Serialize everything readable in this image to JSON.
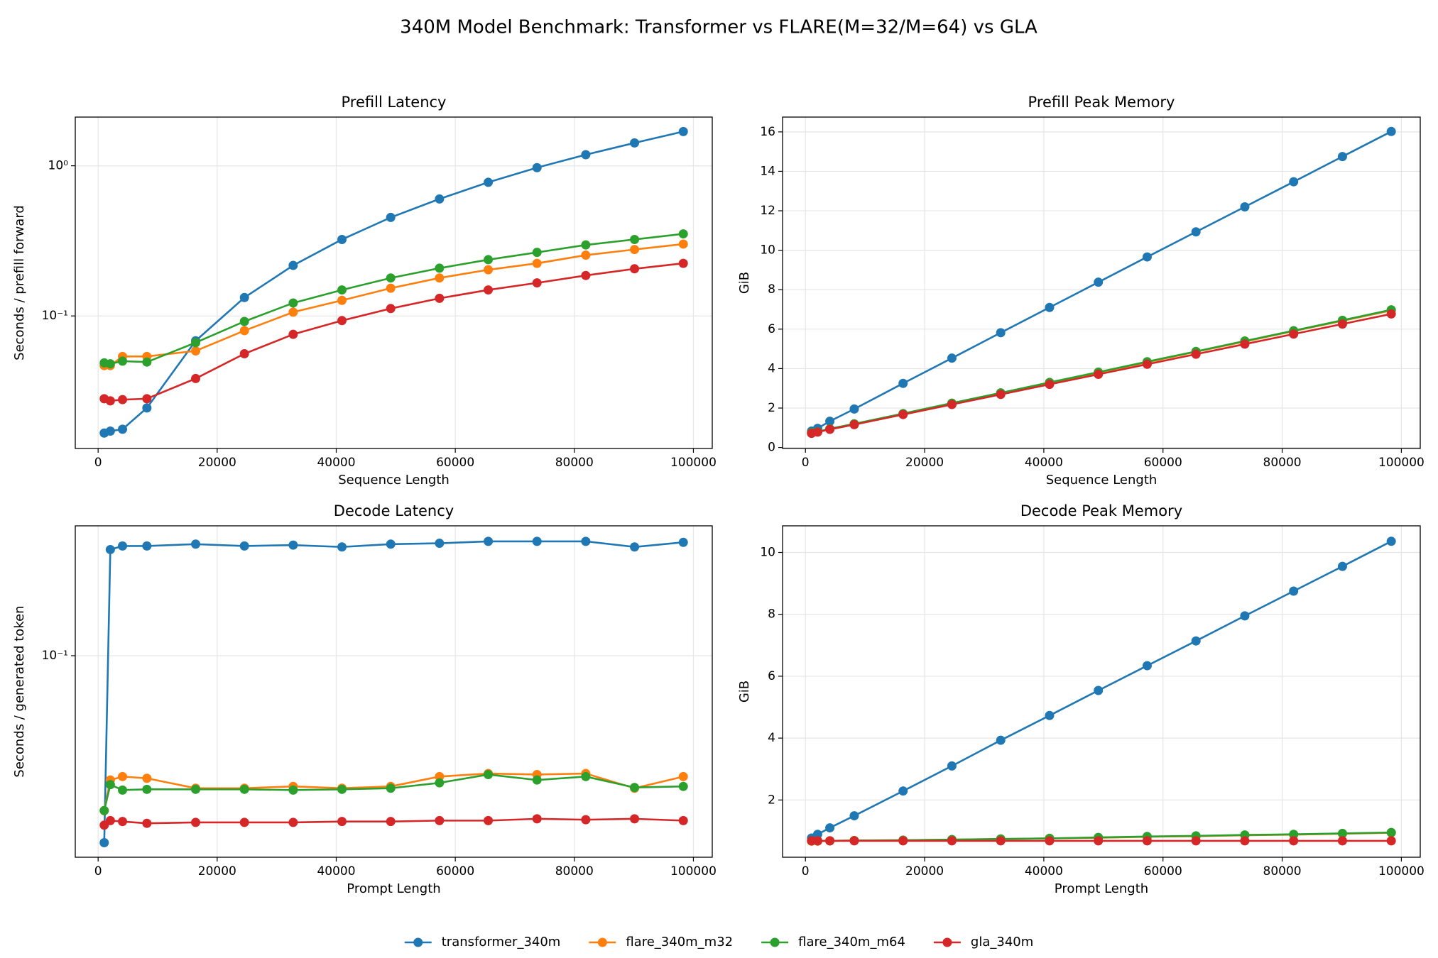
{
  "title": "340M Model Benchmark: Transformer vs FLARE(M=32/M=64) vs GLA",
  "legend": "lower center",
  "chart_data": [
    {
      "type": "line",
      "title": "Prefill Latency",
      "xlabel": "Sequence Length",
      "ylabel": "Seconds / prefill forward",
      "yscale": "log",
      "grid": true,
      "x": [
        1024,
        2048,
        4096,
        8192,
        16384,
        24576,
        32768,
        40960,
        49152,
        57344,
        65536,
        73728,
        81920,
        90112,
        98304
      ],
      "xlim": [
        -3840,
        103168
      ],
      "xticks": [
        0,
        20000,
        40000,
        60000,
        80000,
        100000
      ],
      "ylim": [
        0.0131,
        2.11
      ],
      "yticks": [
        {
          "value": 0.1,
          "label": "10⁻¹"
        },
        {
          "value": 1,
          "label": "10⁰"
        }
      ],
      "series": [
        {
          "name": "transformer_340m",
          "color": "#1f77b4",
          "values": [
            0.0166,
            0.0171,
            0.0176,
            0.0244,
            0.0683,
            0.1326,
            0.217,
            0.323,
            0.453,
            0.601,
            0.776,
            0.972,
            1.185,
            1.42,
            1.69
          ]
        },
        {
          "name": "flare_340m_m32",
          "color": "#ff7f0e",
          "values": [
            0.0467,
            0.0467,
            0.0537,
            0.0537,
            0.0585,
            0.0798,
            0.106,
            0.127,
            0.153,
            0.179,
            0.203,
            0.224,
            0.254,
            0.277,
            0.301
          ]
        },
        {
          "name": "flare_340m_m64",
          "color": "#2ca02c",
          "values": [
            0.0487,
            0.048,
            0.05,
            0.0493,
            0.0664,
            0.0919,
            0.122,
            0.149,
            0.179,
            0.208,
            0.237,
            0.265,
            0.297,
            0.323,
            0.352
          ]
        },
        {
          "name": "gla_340m",
          "color": "#d62728",
          "values": [
            0.0281,
            0.0272,
            0.0277,
            0.0281,
            0.0383,
            0.056,
            0.0754,
            0.0931,
            0.112,
            0.131,
            0.149,
            0.166,
            0.186,
            0.206,
            0.224
          ]
        }
      ]
    },
    {
      "type": "line",
      "title": "Prefill Peak Memory",
      "xlabel": "Sequence Length",
      "ylabel": "GiB",
      "yscale": "linear",
      "grid": true,
      "x": [
        1024,
        2048,
        4096,
        8192,
        16384,
        24576,
        32768,
        40960,
        49152,
        57344,
        65536,
        73728,
        81920,
        90112,
        98304
      ],
      "xlim": [
        -3840,
        103168
      ],
      "xticks": [
        0,
        20000,
        40000,
        60000,
        80000,
        100000
      ],
      "ylim": [
        -0.05,
        16.75
      ],
      "yticks": [
        0,
        2,
        4,
        6,
        8,
        10,
        12,
        14,
        16
      ],
      "series": [
        {
          "name": "transformer_340m",
          "color": "#1f77b4",
          "values": [
            0.83,
            0.97,
            1.33,
            1.95,
            3.25,
            4.53,
            5.82,
            7.1,
            8.38,
            9.66,
            10.93,
            12.2,
            13.47,
            14.75,
            16.02
          ]
        },
        {
          "name": "flare_340m_m32",
          "color": "#ff7f0e",
          "values": [
            0.74,
            0.79,
            0.94,
            1.19,
            1.71,
            2.23,
            2.75,
            3.28,
            3.8,
            4.32,
            4.85,
            5.37,
            5.9,
            6.42,
            6.95
          ]
        },
        {
          "name": "flare_340m_m64",
          "color": "#2ca02c",
          "values": [
            0.75,
            0.8,
            0.95,
            1.2,
            1.72,
            2.25,
            2.77,
            3.3,
            3.82,
            4.35,
            4.87,
            5.4,
            5.92,
            6.45,
            6.98
          ]
        },
        {
          "name": "gla_340m",
          "color": "#d62728",
          "values": [
            0.72,
            0.78,
            0.92,
            1.16,
            1.67,
            2.18,
            2.69,
            3.2,
            3.71,
            4.22,
            4.73,
            5.24,
            5.75,
            6.26,
            6.77
          ]
        }
      ]
    },
    {
      "type": "line",
      "title": "Decode Latency",
      "xlabel": "Prompt Length",
      "ylabel": "Seconds / generated token",
      "yscale": "log",
      "grid": true,
      "x": [
        1024,
        2048,
        4096,
        8192,
        16384,
        24576,
        32768,
        40960,
        49152,
        57344,
        65536,
        73728,
        81920,
        90112,
        98304
      ],
      "xlim": [
        -3840,
        103168
      ],
      "xticks": [
        0,
        20000,
        40000,
        60000,
        80000,
        100000
      ],
      "ylim": [
        0.0284,
        0.225
      ],
      "yticks": [
        {
          "value": 0.1,
          "label": "10⁻¹"
        }
      ],
      "series": [
        {
          "name": "transformer_340m",
          "color": "#1f77b4",
          "values": [
            0.0311,
            0.194,
            0.1984,
            0.1984,
            0.2007,
            0.1984,
            0.1995,
            0.1972,
            0.2007,
            0.2018,
            0.2042,
            0.2042,
            0.2042,
            0.1972,
            0.203
          ]
        },
        {
          "name": "flare_340m_m32",
          "color": "#ff7f0e",
          "values": [
            0.038,
            0.046,
            0.047,
            0.0465,
            0.0437,
            0.0437,
            0.0442,
            0.0437,
            0.0442,
            0.047,
            0.0479,
            0.0476,
            0.0479,
            0.0437,
            0.047
          ]
        },
        {
          "name": "flare_340m_m64",
          "color": "#2ca02c",
          "values": [
            0.038,
            0.0447,
            0.0432,
            0.0434,
            0.0434,
            0.0434,
            0.0432,
            0.0434,
            0.0437,
            0.0452,
            0.0476,
            0.046,
            0.047,
            0.0439,
            0.0442
          ]
        },
        {
          "name": "gla_340m",
          "color": "#d62728",
          "values": [
            0.0347,
            0.0357,
            0.0355,
            0.0351,
            0.0353,
            0.0353,
            0.0353,
            0.0355,
            0.0355,
            0.0357,
            0.0357,
            0.0361,
            0.0359,
            0.0361,
            0.0357
          ]
        }
      ]
    },
    {
      "type": "line",
      "title": "Decode Peak Memory",
      "xlabel": "Prompt Length",
      "ylabel": "GiB",
      "yscale": "linear",
      "grid": true,
      "x": [
        1024,
        2048,
        4096,
        8192,
        16384,
        24576,
        32768,
        40960,
        49152,
        57344,
        65536,
        73728,
        81920,
        90112,
        98304
      ],
      "xlim": [
        -3840,
        103168
      ],
      "xticks": [
        0,
        20000,
        40000,
        60000,
        80000,
        100000
      ],
      "ylim": [
        0.15,
        10.86
      ],
      "yticks": [
        2,
        4,
        6,
        8,
        10
      ],
      "series": [
        {
          "name": "transformer_340m",
          "color": "#1f77b4",
          "values": [
            0.77,
            0.89,
            1.1,
            1.49,
            2.29,
            3.1,
            3.93,
            4.73,
            5.54,
            6.34,
            7.14,
            7.95,
            8.75,
            9.55,
            10.36
          ]
        },
        {
          "name": "flare_340m_m32",
          "color": "#ff7f0e",
          "values": [
            0.67,
            0.67,
            0.68,
            0.69,
            0.7,
            0.72,
            0.74,
            0.76,
            0.78,
            0.81,
            0.83,
            0.86,
            0.88,
            0.91,
            0.94
          ]
        },
        {
          "name": "flare_340m_m64",
          "color": "#2ca02c",
          "values": [
            0.68,
            0.68,
            0.68,
            0.69,
            0.7,
            0.72,
            0.74,
            0.76,
            0.79,
            0.82,
            0.84,
            0.87,
            0.89,
            0.92,
            0.95
          ]
        },
        {
          "name": "gla_340m",
          "color": "#d62728",
          "values": [
            0.68,
            0.68,
            0.68,
            0.68,
            0.68,
            0.68,
            0.68,
            0.68,
            0.68,
            0.68,
            0.68,
            0.68,
            0.68,
            0.68,
            0.68
          ]
        }
      ]
    }
  ]
}
